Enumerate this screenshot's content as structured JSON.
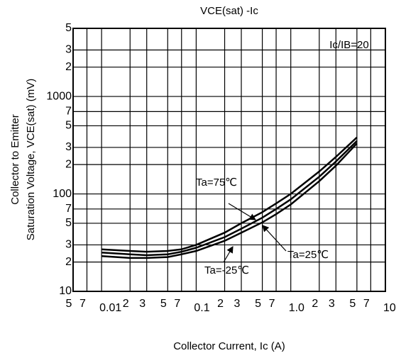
{
  "chart_data": {
    "type": "line",
    "title": "VCE(sat) -Ic",
    "annotation": "Ic/IB=20",
    "xlabel": "Collector Current, Ic (A)",
    "ylabel": [
      "Collector to Emitter",
      "Saturation Voltage, VCE(sat) (mV)"
    ],
    "xscale": "log",
    "yscale": "log",
    "grid": true,
    "xlim": [
      0.005,
      10
    ],
    "ylim": [
      10,
      5000
    ],
    "xticks": [
      {
        "value": 0.005,
        "label": "5"
      },
      {
        "value": 0.007,
        "label": "7"
      },
      0.01,
      {
        "value": 0.02,
        "label": "2"
      },
      {
        "value": 0.03,
        "label": "3"
      },
      {
        "value": 0.05,
        "label": "5"
      },
      {
        "value": 0.07,
        "label": "7"
      },
      0.1,
      {
        "value": 0.2,
        "label": "2"
      },
      {
        "value": 0.3,
        "label": "3"
      },
      {
        "value": 0.5,
        "label": "5"
      },
      {
        "value": 0.7,
        "label": "7"
      },
      {
        "value": 1,
        "label": "1.0"
      },
      {
        "value": 2,
        "label": "2"
      },
      {
        "value": 3,
        "label": "3"
      },
      {
        "value": 5,
        "label": "5"
      },
      {
        "value": 7,
        "label": "7"
      },
      10
    ],
    "yticks": [
      10,
      {
        "value": 20,
        "label": "2"
      },
      {
        "value": 30,
        "label": "3"
      },
      {
        "value": 50,
        "label": "5"
      },
      {
        "value": 70,
        "label": "7"
      },
      100,
      {
        "value": 200,
        "label": "2"
      },
      {
        "value": 300,
        "label": "3"
      },
      {
        "value": 500,
        "label": "5"
      },
      {
        "value": 700,
        "label": "7"
      },
      1000,
      {
        "value": 2000,
        "label": "2"
      },
      {
        "value": 3000,
        "label": "3"
      },
      {
        "value": 5000,
        "label": "5"
      }
    ],
    "x": [
      0.01,
      0.02,
      0.03,
      0.05,
      0.07,
      0.1,
      0.2,
      0.3,
      0.5,
      0.7,
      1,
      2,
      3,
      5
    ],
    "series": [
      {
        "name": "Ta=75℃",
        "color": "#000000",
        "values": [
          27,
          26,
          25.5,
          26,
          27,
          30,
          40,
          50,
          65,
          80,
          100,
          170,
          240,
          380
        ]
      },
      {
        "name": "Ta=25℃",
        "color": "#000000",
        "values": [
          25,
          24,
          23.5,
          24,
          25.5,
          28,
          36,
          44,
          57,
          70,
          88,
          150,
          215,
          350
        ]
      },
      {
        "name": "Ta=-25℃",
        "color": "#000000",
        "values": [
          23,
          22,
          22,
          22.5,
          24,
          26,
          33,
          40,
          51,
          62,
          78,
          135,
          195,
          330
        ]
      }
    ]
  }
}
